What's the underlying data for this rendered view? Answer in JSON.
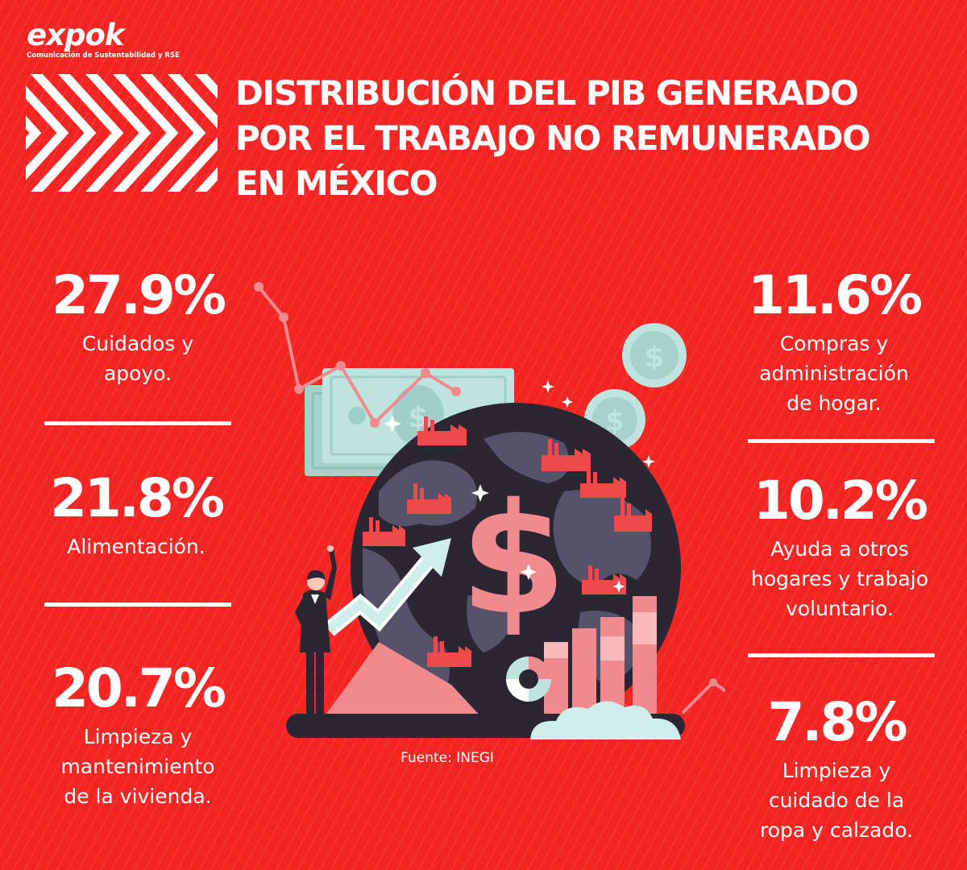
{
  "logo": {
    "wordmark": "expok",
    "tagline": "Comunicación de Sustentabilidad y RSE"
  },
  "title_lines": [
    "DISTRIBUCIÓN DEL PIB GENERADO",
    "POR EL TRABAJO NO REMUNERADO",
    "EN MÉXICO"
  ],
  "source": "Fuente: INEGI",
  "stats": [
    {
      "value": "27.9%",
      "label_lines": [
        "Cuidados y",
        "apoyo."
      ]
    },
    {
      "value": "21.8%",
      "label_lines": [
        "Alimentación."
      ]
    },
    {
      "value": "20.7%",
      "label_lines": [
        "Limpieza y",
        "mantenimiento",
        "de la vivienda."
      ]
    },
    {
      "value": "11.6%",
      "label_lines": [
        "Compras y",
        "administración",
        "de hogar."
      ]
    },
    {
      "value": "10.2%",
      "label_lines": [
        "Ayuda a otros",
        "hogares y trabajo",
        "voluntario."
      ]
    },
    {
      "value": "7.8%",
      "label_lines": [
        "Limpieza y",
        "cuidado de la",
        "ropa y calzado."
      ]
    }
  ],
  "chart_data": {
    "type": "table",
    "title": "DISTRIBUCIÓN DEL PIB GENERADO POR EL TRABAJO NO REMUNERADO EN MÉXICO",
    "categories": [
      "Cuidados y apoyo.",
      "Alimentación.",
      "Limpieza y mantenimiento de la vivienda.",
      "Compras y administración de hogar.",
      "Ayuda a otros hogares y trabajo voluntario.",
      "Limpieza y cuidado de la ropa y calzado."
    ],
    "values": [
      27.9,
      21.8,
      20.7,
      11.6,
      10.2,
      7.8
    ],
    "unit": "%",
    "source": "Fuente: INEGI"
  },
  "colors": {
    "background": "#f22522",
    "text": "#ffffff",
    "globe_dark": "#2a2634",
    "globe_land": "#55526a",
    "pink": "#f08a8f",
    "pink_light": "#fbb9bc",
    "mint": "#bfe3df",
    "factory": "#ee4a4a"
  }
}
